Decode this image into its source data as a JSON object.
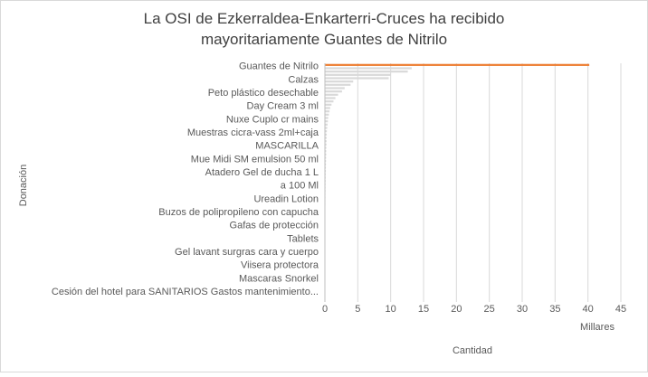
{
  "chart_data": {
    "type": "barh",
    "title": "La OSI de Ezkerraldea-Enkarterri-Cruces ha recibido mayoritariamente Guantes de Nitrilo",
    "x_label": "Cantidad",
    "y_label": "Donación",
    "x_unit_label": "Millares",
    "categories": [
      "Guantes de Nitrilo",
      null,
      null,
      null,
      "Calzas",
      null,
      null,
      null,
      "Peto plástico desechable",
      null,
      null,
      null,
      "Day Cream 3 ml",
      null,
      null,
      null,
      "Nuxe Cuplo cr mains",
      null,
      null,
      null,
      "Muestras cicra-vass 2ml+caja",
      null,
      null,
      null,
      "MASCARILLA",
      null,
      null,
      null,
      "Mue Midi SM emulsion 50 ml",
      null,
      null,
      null,
      "Atadero Gel de ducha 1 L",
      null,
      null,
      null,
      "a 100 Ml",
      null,
      null,
      null,
      "Ureadin Lotion",
      null,
      null,
      null,
      "Buzos de polipropileno con capucha",
      null,
      null,
      null,
      "Gafas de protección",
      null,
      null,
      null,
      "Tablets",
      null,
      null,
      null,
      "Gel lavant surgras cara y  cuerpo",
      null,
      null,
      null,
      "Viisera protectora",
      null,
      null,
      null,
      "Mascaras Snorkel",
      null,
      null,
      null,
      "Cesión del hotel para SANITARIOS Gastos mantenimiento...",
      null,
      null,
      null
    ],
    "values": [
      40.2,
      13.2,
      12.6,
      10.0,
      9.7,
      4.3,
      3.9,
      3.0,
      2.6,
      2.0,
      1.6,
      1.3,
      1.0,
      0.8,
      0.7,
      0.6,
      0.5,
      0.45,
      0.4,
      0.35,
      0.3,
      0.28,
      0.26,
      0.25,
      0.24,
      0.22,
      0.2,
      0.2,
      0.18,
      0.17,
      0.16,
      0.15,
      0.14,
      0.13,
      0.12,
      0.12,
      0.11,
      0.1,
      0.1,
      0.09,
      0.09,
      0.08,
      0.08,
      0.07,
      0.07,
      0.06,
      0.06,
      0.05,
      0.05,
      0.05,
      0.04,
      0.04,
      0.04,
      0.03,
      0.03,
      0.03,
      0.02,
      0.02,
      0.02,
      0.02,
      0.01,
      0.01,
      0.01,
      0.01,
      0.01,
      0.01,
      0.01,
      0.01,
      0.01,
      0.01,
      0.01,
      0.01
    ],
    "colors": [
      "#ed7d31",
      "#d9d9d9",
      "#d9d9d9",
      "#d9d9d9",
      "#d9d9d9",
      "#d9d9d9",
      "#d9d9d9",
      "#d9d9d9",
      "#d9d9d9",
      "#d9d9d9",
      "#d9d9d9",
      "#d9d9d9",
      "#d9d9d9",
      "#d9d9d9",
      "#d9d9d9",
      "#d9d9d9",
      "#d9d9d9",
      "#d9d9d9",
      "#d9d9d9",
      "#d9d9d9",
      "#d9d9d9",
      "#d9d9d9",
      "#d9d9d9",
      "#d9d9d9",
      "#d9d9d9",
      "#d9d9d9",
      "#d9d9d9",
      "#d9d9d9",
      "#d9d9d9",
      "#d9d9d9",
      "#d9d9d9",
      "#d9d9d9",
      "#d9d9d9",
      "#d9d9d9",
      "#d9d9d9",
      "#d9d9d9",
      "#d9d9d9",
      "#d9d9d9",
      "#d9d9d9",
      "#d9d9d9",
      "#d9d9d9",
      "#d9d9d9",
      "#d9d9d9",
      "#d9d9d9",
      "#d9d9d9",
      "#d9d9d9",
      "#d9d9d9",
      "#d9d9d9",
      "#d9d9d9",
      "#d9d9d9",
      "#d9d9d9",
      "#d9d9d9",
      "#d9d9d9",
      "#d9d9d9",
      "#d9d9d9",
      "#d9d9d9",
      "#d9d9d9",
      "#d9d9d9",
      "#d9d9d9",
      "#d9d9d9",
      "#d9d9d9",
      "#d9d9d9",
      "#d9d9d9",
      "#d9d9d9",
      "#d9d9d9",
      "#d9d9d9",
      "#d9d9d9",
      "#d9d9d9",
      "#d9d9d9",
      "#d9d9d9",
      "#d9d9d9",
      "#d9d9d9"
    ],
    "xlim": [
      0,
      45
    ],
    "xticks": [
      0,
      5,
      10,
      15,
      20,
      25,
      30,
      35,
      40,
      45
    ],
    "grid": true
  }
}
